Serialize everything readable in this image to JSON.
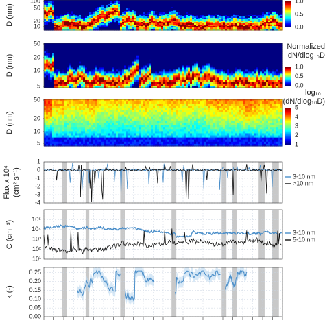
{
  "chart_data": [
    {
      "type": "heatmap",
      "panel": "normalized",
      "ylabel": "D (nm)",
      "yticks": [
        "100",
        "50",
        "20",
        "10"
      ],
      "colorbar_ticks": [
        "1.0",
        "0.5",
        "0.0"
      ],
      "colorbar_range": [
        0,
        1
      ],
      "colormap": "jet"
    },
    {
      "type": "heatmap",
      "panel": "normalized",
      "ylabel": "D (nm)",
      "yticks": [
        "50",
        "20",
        "10",
        "5"
      ],
      "colorbar_title_line1": "Normalized",
      "colorbar_title_line2": "dN/dlog₁₀D",
      "colorbar_ticks": [
        "1.0",
        "0.5",
        "0.0"
      ],
      "colorbar_range": [
        0,
        1
      ],
      "colormap": "jet"
    },
    {
      "type": "heatmap",
      "panel": "log",
      "ylabel": "D (nm)",
      "yticks": [
        "50",
        "20",
        "10",
        "5"
      ],
      "colorbar_title_line1": "log₁₀",
      "colorbar_title_line2": "(dN/dlog₁₀D)",
      "colorbar_ticks": [
        "5",
        "4",
        "3",
        "2",
        "1"
      ],
      "colorbar_range": [
        1,
        5
      ],
      "colormap": "jet"
    },
    {
      "type": "line",
      "ylabel_line1": "Flux x 10⁴",
      "ylabel_line2": "(cm² s⁻¹)",
      "ylim": [
        -4,
        1
      ],
      "yticks": [
        "1",
        "0",
        "-1",
        "-2",
        "-3",
        "-4"
      ],
      "grid": true,
      "legend_placement": "right",
      "series": [
        {
          "name": "3-10 nm",
          "color": "#4a8ec9"
        },
        {
          "name": ">10 nm",
          "color": "#111111"
        }
      ]
    },
    {
      "type": "line",
      "ylabel": "C (cm⁻³)",
      "yscale": "log",
      "ylim": [
        10,
        1000000
      ],
      "yticks": [
        "10⁵",
        "10⁴",
        "10³",
        "10²",
        "10¹"
      ],
      "grid": true,
      "legend_placement": "right",
      "series": [
        {
          "name": "3-10 nm",
          "color": "#4a8ec9"
        },
        {
          "name": "5-10 nm",
          "color": "#111111"
        }
      ]
    },
    {
      "type": "line",
      "ylabel": "κ (-)",
      "ylim": [
        0,
        0.28
      ],
      "yticks": [
        "0.25",
        "0.20",
        "0.15",
        "0.10",
        "0.05",
        "0.00"
      ],
      "grid": true,
      "series": [
        {
          "color": "#4a8ec9"
        }
      ]
    }
  ],
  "shaded_events": [
    [
      0.075,
      0.095
    ],
    [
      0.175,
      0.19
    ],
    [
      0.32,
      0.34
    ],
    [
      0.535,
      0.555
    ],
    [
      0.745,
      0.765
    ],
    [
      0.79,
      0.81
    ],
    [
      0.9,
      0.925
    ],
    [
      0.955,
      0.985
    ]
  ],
  "colors": {
    "event_shading": "#c8c8c8",
    "grid": "#c9d3e0"
  }
}
